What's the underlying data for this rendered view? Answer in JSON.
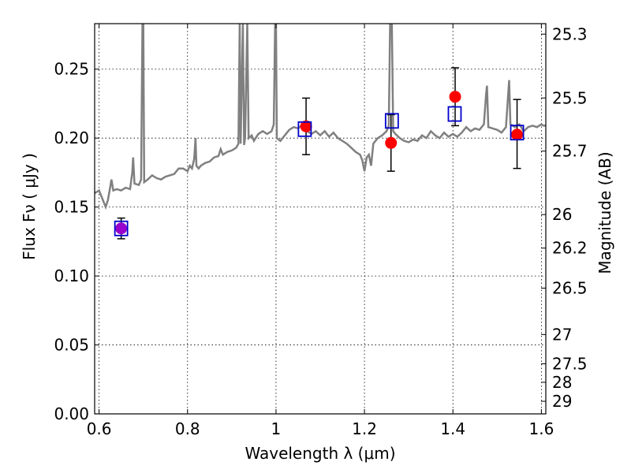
{
  "chart_data": {
    "type": "scatter",
    "xlabel": "Wavelength  λ (μm)",
    "ylabel_left": "Flux  Fν  ( μJy )",
    "ylabel_right": "Magnitude (AB)",
    "xlim": [
      0.59,
      1.61
    ],
    "ylim": [
      0.0,
      0.283
    ],
    "grid": true,
    "x_ticks": [
      {
        "value": 0.6,
        "label": "0.6"
      },
      {
        "value": 0.8,
        "label": "0.8"
      },
      {
        "value": 1.0,
        "label": "1"
      },
      {
        "value": 1.2,
        "label": "1.2"
      },
      {
        "value": 1.4,
        "label": "1.4"
      },
      {
        "value": 1.6,
        "label": "1.6"
      }
    ],
    "y_ticks": [
      {
        "value": 0.0,
        "label": "0.00"
      },
      {
        "value": 0.05,
        "label": "0.05"
      },
      {
        "value": 0.1,
        "label": "0.10"
      },
      {
        "value": 0.15,
        "label": "0.15"
      },
      {
        "value": 0.2,
        "label": "0.20"
      },
      {
        "value": 0.25,
        "label": "0.25"
      }
    ],
    "magnitude_ticks": [
      "25.3",
      "25.5",
      "25.7",
      "26",
      "26.2",
      "26.5",
      "27",
      "27.5",
      "28",
      "29"
    ],
    "colors": {
      "model": "#808080",
      "observed": "#ff0000",
      "model_points": "#0000cc",
      "blend": "#9900cc",
      "errorbar": "#000000",
      "grid": "#000000"
    },
    "series": [
      {
        "kind": "model_spectrum",
        "points": [
          [
            0.59,
            0.16
          ],
          [
            0.6,
            0.162
          ],
          [
            0.605,
            0.158
          ],
          [
            0.61,
            0.154
          ],
          [
            0.615,
            0.15
          ],
          [
            0.62,
            0.155
          ],
          [
            0.625,
            0.164
          ],
          [
            0.628,
            0.17
          ],
          [
            0.632,
            0.162
          ],
          [
            0.64,
            0.163
          ],
          [
            0.65,
            0.162
          ],
          [
            0.66,
            0.164
          ],
          [
            0.67,
            0.163
          ],
          [
            0.675,
            0.175
          ],
          [
            0.677,
            0.186
          ],
          [
            0.68,
            0.167
          ],
          [
            0.69,
            0.166
          ],
          [
            0.695,
            0.17
          ],
          [
            0.698,
            0.283
          ],
          [
            0.7,
            0.283
          ],
          [
            0.702,
            0.168
          ],
          [
            0.71,
            0.17
          ],
          [
            0.72,
            0.173
          ],
          [
            0.73,
            0.171
          ],
          [
            0.74,
            0.17
          ],
          [
            0.75,
            0.172
          ],
          [
            0.76,
            0.173
          ],
          [
            0.77,
            0.174
          ],
          [
            0.78,
            0.178
          ],
          [
            0.79,
            0.178
          ],
          [
            0.8,
            0.176
          ],
          [
            0.805,
            0.18
          ],
          [
            0.81,
            0.178
          ],
          [
            0.815,
            0.185
          ],
          [
            0.818,
            0.2
          ],
          [
            0.82,
            0.18
          ],
          [
            0.825,
            0.178
          ],
          [
            0.83,
            0.18
          ],
          [
            0.84,
            0.182
          ],
          [
            0.85,
            0.183
          ],
          [
            0.86,
            0.186
          ],
          [
            0.87,
            0.187
          ],
          [
            0.875,
            0.192
          ],
          [
            0.88,
            0.188
          ],
          [
            0.89,
            0.19
          ],
          [
            0.9,
            0.191
          ],
          [
            0.91,
            0.193
          ],
          [
            0.915,
            0.196
          ],
          [
            0.918,
            0.283
          ],
          [
            0.92,
            0.196
          ],
          [
            0.925,
            0.283
          ],
          [
            0.928,
            0.195
          ],
          [
            0.93,
            0.2
          ],
          [
            0.935,
            0.283
          ],
          [
            0.938,
            0.2
          ],
          [
            0.945,
            0.202
          ],
          [
            0.95,
            0.198
          ],
          [
            0.96,
            0.203
          ],
          [
            0.97,
            0.205
          ],
          [
            0.98,
            0.203
          ],
          [
            0.99,
            0.205
          ],
          [
            0.995,
            0.21
          ],
          [
            0.998,
            0.283
          ],
          [
            1.0,
            0.283
          ],
          [
            1.002,
            0.2
          ],
          [
            1.01,
            0.198
          ],
          [
            1.02,
            0.202
          ],
          [
            1.03,
            0.206
          ],
          [
            1.04,
            0.208
          ],
          [
            1.05,
            0.207
          ],
          [
            1.06,
            0.21
          ],
          [
            1.07,
            0.205
          ],
          [
            1.08,
            0.203
          ],
          [
            1.09,
            0.205
          ],
          [
            1.1,
            0.202
          ],
          [
            1.11,
            0.205
          ],
          [
            1.12,
            0.201
          ],
          [
            1.13,
            0.204
          ],
          [
            1.14,
            0.2
          ],
          [
            1.15,
            0.198
          ],
          [
            1.16,
            0.196
          ],
          [
            1.17,
            0.193
          ],
          [
            1.18,
            0.19
          ],
          [
            1.19,
            0.188
          ],
          [
            1.195,
            0.184
          ],
          [
            1.2,
            0.176
          ],
          [
            1.205,
            0.186
          ],
          [
            1.21,
            0.188
          ],
          [
            1.215,
            0.18
          ],
          [
            1.22,
            0.196
          ],
          [
            1.23,
            0.2
          ],
          [
            1.24,
            0.202
          ],
          [
            1.25,
            0.205
          ],
          [
            1.255,
            0.209
          ],
          [
            1.258,
            0.283
          ],
          [
            1.262,
            0.283
          ],
          [
            1.265,
            0.205
          ],
          [
            1.27,
            0.203
          ],
          [
            1.28,
            0.2
          ],
          [
            1.29,
            0.198
          ],
          [
            1.3,
            0.197
          ],
          [
            1.31,
            0.199
          ],
          [
            1.32,
            0.198
          ],
          [
            1.33,
            0.202
          ],
          [
            1.34,
            0.2
          ],
          [
            1.35,
            0.205
          ],
          [
            1.36,
            0.202
          ],
          [
            1.37,
            0.2
          ],
          [
            1.38,
            0.204
          ],
          [
            1.39,
            0.201
          ],
          [
            1.4,
            0.203
          ],
          [
            1.41,
            0.201
          ],
          [
            1.42,
            0.204
          ],
          [
            1.43,
            0.208
          ],
          [
            1.44,
            0.205
          ],
          [
            1.45,
            0.207
          ],
          [
            1.46,
            0.206
          ],
          [
            1.47,
            0.21
          ],
          [
            1.475,
            0.232
          ],
          [
            1.477,
            0.238
          ],
          [
            1.48,
            0.208
          ],
          [
            1.49,
            0.207
          ],
          [
            1.5,
            0.206
          ],
          [
            1.51,
            0.204
          ],
          [
            1.52,
            0.208
          ],
          [
            1.525,
            0.232
          ],
          [
            1.527,
            0.242
          ],
          [
            1.53,
            0.21
          ],
          [
            1.54,
            0.208
          ],
          [
            1.55,
            0.21
          ],
          [
            1.56,
            0.205
          ],
          [
            1.57,
            0.208
          ],
          [
            1.58,
            0.209
          ],
          [
            1.59,
            0.208
          ],
          [
            1.6,
            0.21
          ],
          [
            1.605,
            0.209
          ],
          [
            1.61,
            0.209
          ]
        ]
      },
      {
        "kind": "observed",
        "points": [
          {
            "x": 0.65,
            "y": 0.1345,
            "yerr_low": 0.127,
            "yerr_high": 0.142
          },
          {
            "x": 1.068,
            "y": 0.2085,
            "yerr_low": 0.188,
            "yerr_high": 0.229
          },
          {
            "x": 1.26,
            "y": 0.1965,
            "yerr_low": 0.176,
            "yerr_high": 0.217
          },
          {
            "x": 1.405,
            "y": 0.23,
            "yerr_low": 0.209,
            "yerr_high": 0.251
          },
          {
            "x": 1.545,
            "y": 0.2025,
            "yerr_low": 0.178,
            "yerr_high": 0.228
          }
        ]
      },
      {
        "kind": "model_points",
        "points": [
          {
            "x": 0.65,
            "y": 0.1345
          },
          {
            "x": 1.065,
            "y": 0.2065
          },
          {
            "x": 1.262,
            "y": 0.2125
          },
          {
            "x": 1.404,
            "y": 0.2175
          },
          {
            "x": 1.545,
            "y": 0.204
          }
        ]
      }
    ]
  }
}
